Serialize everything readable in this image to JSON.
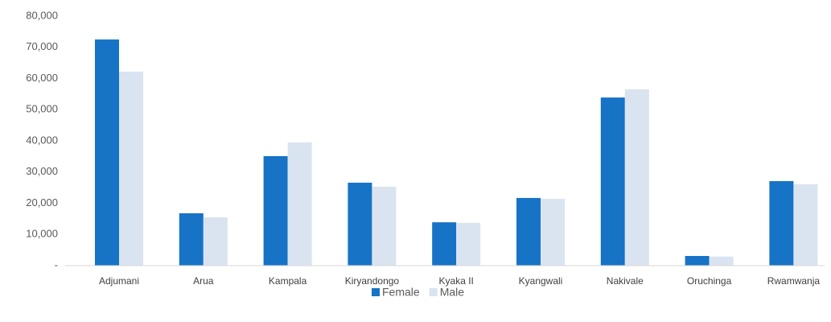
{
  "chart_data": {
    "type": "bar",
    "categories": [
      "Adjumani",
      "Arua",
      "Kampala",
      "Kiryandongo",
      "Kyaka II",
      "Kyangwali",
      "Nakivale",
      "Oruchinga",
      "Rwamwanja"
    ],
    "series": [
      {
        "name": "Female",
        "color": "#1673c6",
        "values": [
          72500,
          16800,
          35100,
          26600,
          13900,
          21700,
          53900,
          3100,
          27100
        ]
      },
      {
        "name": "Male",
        "color": "#dae3f0",
        "values": [
          62200,
          15500,
          39500,
          25300,
          13700,
          21400,
          56500,
          2900,
          26100
        ]
      }
    ],
    "ylim": [
      0,
      80000
    ],
    "yticks": [
      {
        "value": 0,
        "label": "-"
      },
      {
        "value": 10000,
        "label": "10,000"
      },
      {
        "value": 20000,
        "label": "20,000"
      },
      {
        "value": 30000,
        "label": "30,000"
      },
      {
        "value": 40000,
        "label": "40,000"
      },
      {
        "value": 50000,
        "label": "50,000"
      },
      {
        "value": 60000,
        "label": "60,000"
      },
      {
        "value": 70000,
        "label": "70,000"
      },
      {
        "value": 80000,
        "label": "80,000"
      }
    ],
    "grid": false,
    "legend": "bottom"
  }
}
